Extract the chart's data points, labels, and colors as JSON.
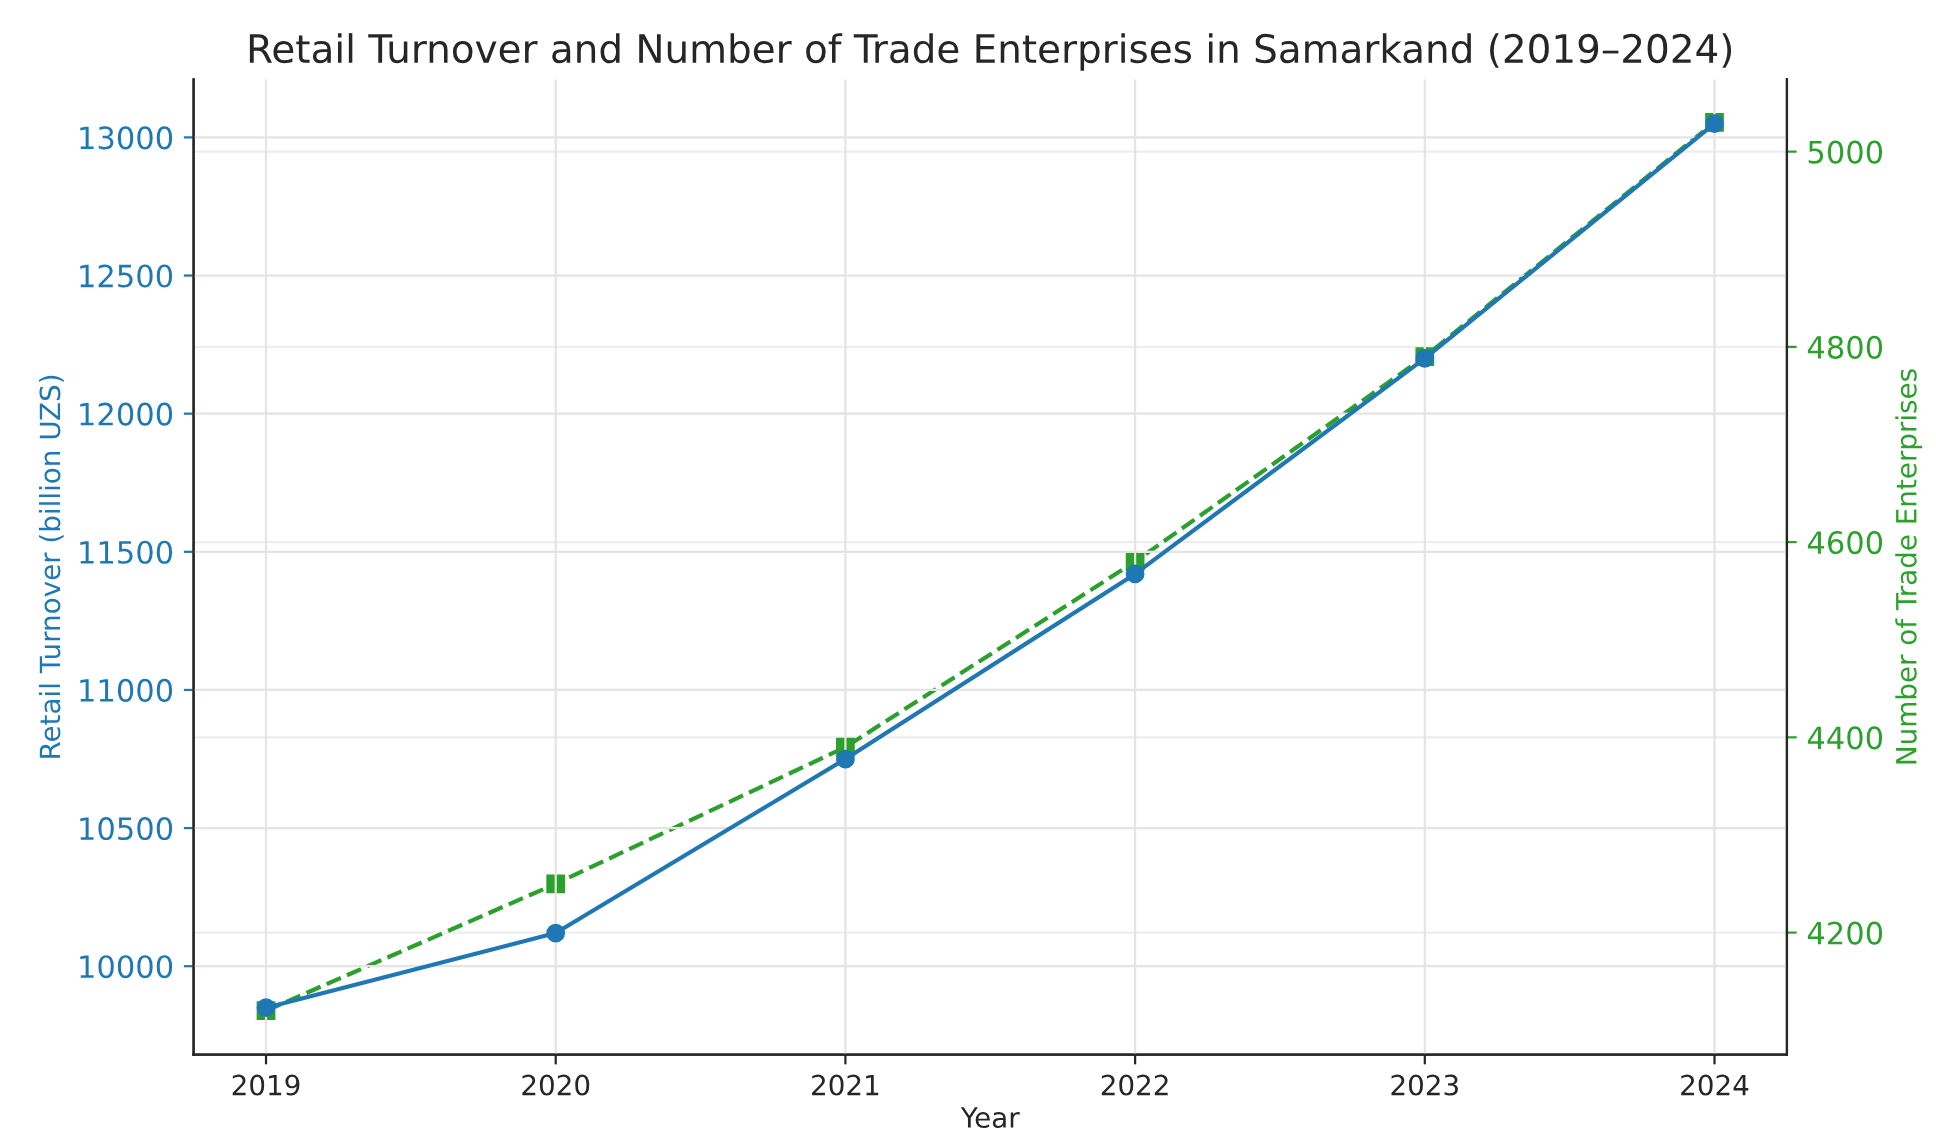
{
  "chart_data": {
    "type": "line",
    "title": "Retail Turnover and Number of Trade Enterprises in Samarkand (2019–2024)",
    "xlabel": "Year",
    "ylabel": "Retail Turnover (billion UZS)",
    "y2label": "Number of Trade Enterprises",
    "x": [
      2019,
      2020,
      2021,
      2022,
      2023,
      2024
    ],
    "series": [
      {
        "color": "#1f77b4",
        "marker": "circle",
        "line_style": "solid",
        "values": [
          9850,
          10120,
          10750,
          11420,
          12200,
          13050
        ]
      },
      {
        "color": "#2ca02c",
        "marker": "square",
        "line_style": "dashed",
        "axis": "y2",
        "values": [
          4120,
          4250,
          4390,
          4580,
          4790,
          5030
        ]
      }
    ],
    "xlim": [
      2018.75,
      2024.25
    ],
    "xticks": [
      2019,
      2020,
      2021,
      2022,
      2023,
      2024
    ],
    "ylim": [
      9680,
      13210
    ],
    "yticks": [
      10000,
      10500,
      11000,
      11500,
      12000,
      12500,
      13000
    ],
    "y2lim": [
      4075,
      5074
    ],
    "y2ticks": [
      4200,
      4400,
      4600,
      4800,
      5000
    ],
    "grid": true
  }
}
